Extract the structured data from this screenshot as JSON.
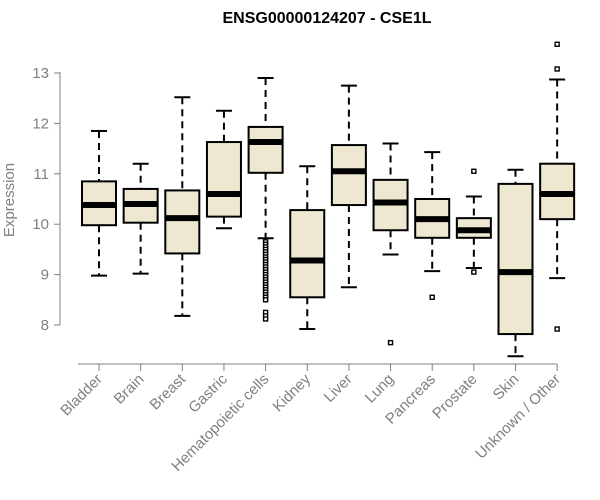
{
  "chart_data": {
    "type": "box",
    "title": "ENSG00000124207 - CSE1L",
    "xlabel": "",
    "ylabel": "Expression",
    "ylim": [
      7.2,
      13.7
    ],
    "yticks": [
      8,
      9,
      10,
      11,
      12,
      13
    ],
    "colors": {
      "box_fill": "#efe8d0",
      "box_stroke": "#000000",
      "axis": "#808080"
    },
    "categories": [
      "Bladder",
      "Brain",
      "Breast",
      "Gastric",
      "Hematopoietic cells",
      "Kidney",
      "Liver",
      "Lung",
      "Pancreas",
      "Prostate",
      "Skin",
      "Unknown / Other"
    ],
    "boxes": [
      {
        "whisker_low": 8.98,
        "q1": 9.98,
        "median": 10.38,
        "q3": 10.85,
        "whisker_high": 11.85,
        "outliers": []
      },
      {
        "whisker_low": 9.02,
        "q1": 10.03,
        "median": 10.4,
        "q3": 10.7,
        "whisker_high": 11.2,
        "outliers": []
      },
      {
        "whisker_low": 8.18,
        "q1": 9.42,
        "median": 10.12,
        "q3": 10.67,
        "whisker_high": 12.52,
        "outliers": []
      },
      {
        "whisker_low": 9.92,
        "q1": 10.15,
        "median": 10.6,
        "q3": 11.63,
        "whisker_high": 12.25,
        "outliers": []
      },
      {
        "whisker_low": 9.72,
        "q1": 11.02,
        "median": 11.63,
        "q3": 11.93,
        "whisker_high": 12.9,
        "outliers": [
          9.65,
          9.6,
          9.55,
          9.5,
          9.45,
          9.4,
          9.35,
          9.3,
          9.25,
          9.2,
          9.15,
          9.1,
          9.05,
          9.0,
          8.95,
          8.9,
          8.85,
          8.8,
          8.75,
          8.7,
          8.65,
          8.6,
          8.55,
          8.5,
          8.25,
          8.18,
          8.12
        ]
      },
      {
        "whisker_low": 7.92,
        "q1": 8.55,
        "median": 9.28,
        "q3": 10.28,
        "whisker_high": 11.15,
        "outliers": []
      },
      {
        "whisker_low": 8.75,
        "q1": 10.38,
        "median": 11.05,
        "q3": 11.57,
        "whisker_high": 12.75,
        "outliers": []
      },
      {
        "whisker_low": 9.4,
        "q1": 9.88,
        "median": 10.43,
        "q3": 10.88,
        "whisker_high": 11.6,
        "outliers": [
          7.65
        ]
      },
      {
        "whisker_low": 9.07,
        "q1": 9.73,
        "median": 10.1,
        "q3": 10.5,
        "whisker_high": 11.43,
        "outliers": [
          8.55
        ]
      },
      {
        "whisker_low": 9.13,
        "q1": 9.73,
        "median": 9.88,
        "q3": 10.12,
        "whisker_high": 10.55,
        "outliers": [
          11.05,
          9.05
        ]
      },
      {
        "whisker_low": 7.38,
        "q1": 7.82,
        "median": 9.05,
        "q3": 10.8,
        "whisker_high": 11.08,
        "outliers": []
      },
      {
        "whisker_low": 8.93,
        "q1": 10.1,
        "median": 10.6,
        "q3": 11.2,
        "whisker_high": 12.87,
        "outliers": [
          13.57,
          13.08,
          7.92
        ]
      }
    ]
  }
}
